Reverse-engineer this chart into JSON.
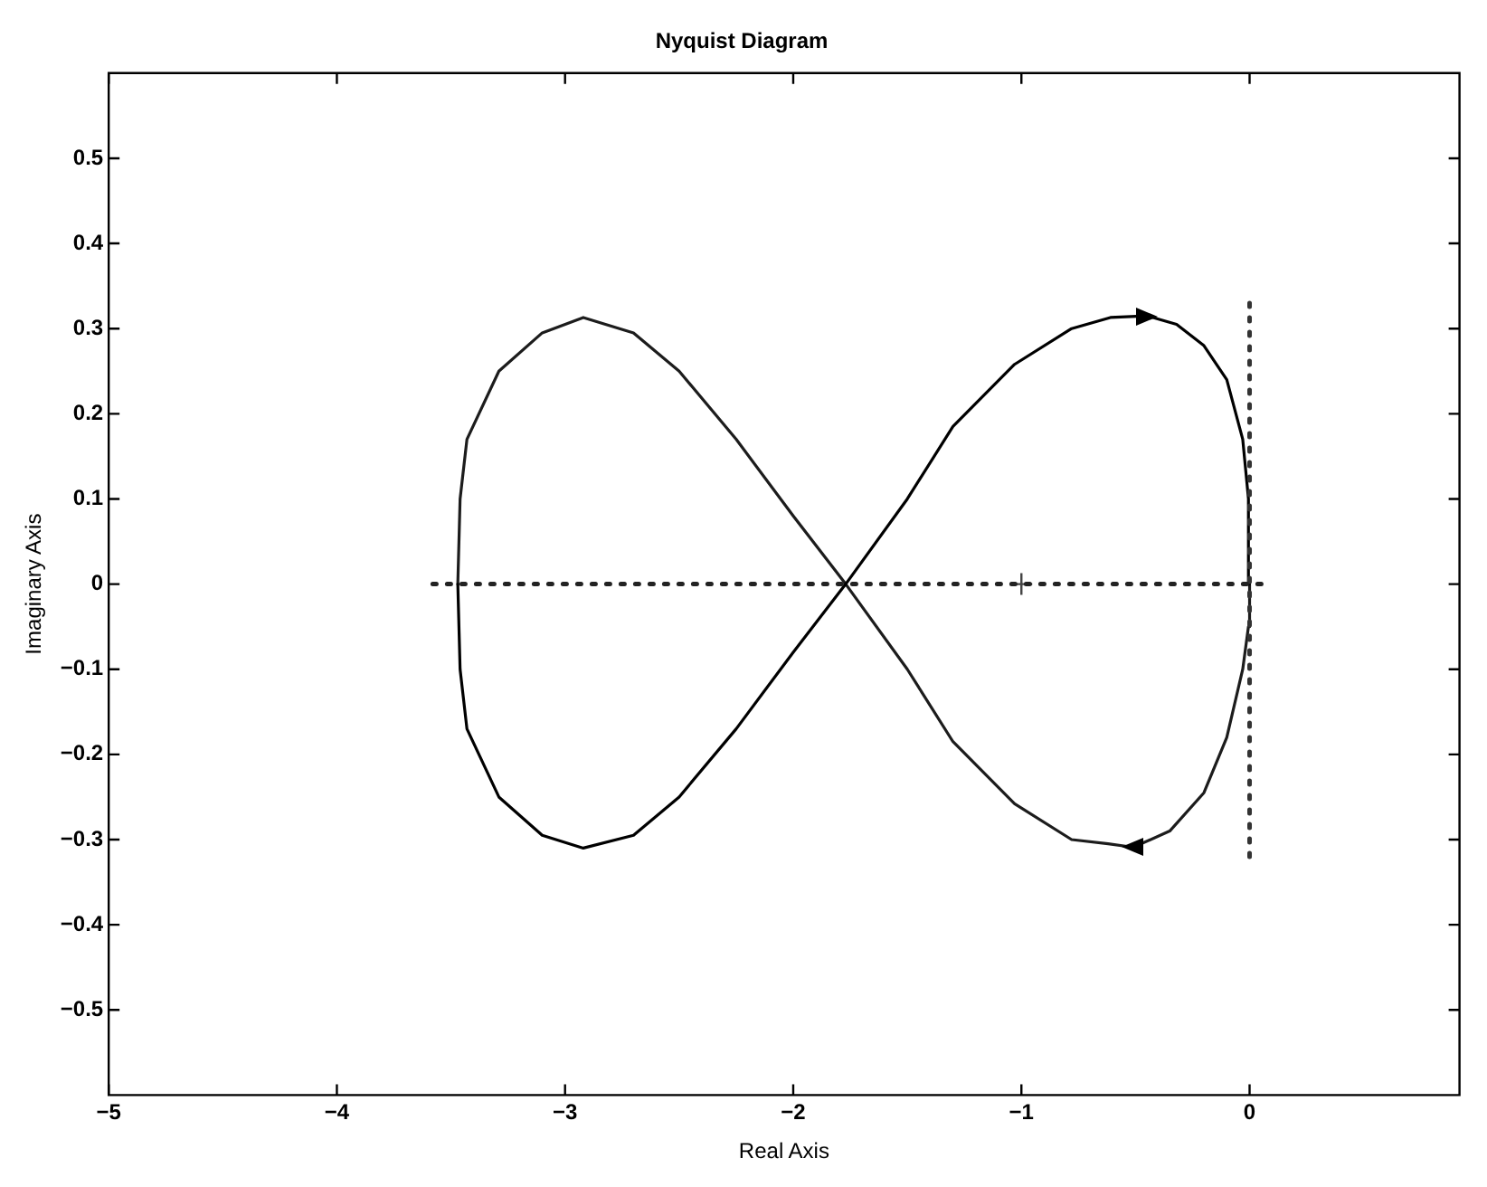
{
  "chart_data": {
    "type": "line",
    "title": "Nyquist Diagram",
    "xlabel": "Real Axis",
    "ylabel": "Imaginary Axis",
    "xlim": [
      -5,
      0.92
    ],
    "ylim": [
      -0.6,
      0.6
    ],
    "xticks": [
      -5,
      -4,
      -3,
      -2,
      -1,
      0
    ],
    "yticks": [
      -0.5,
      -0.4,
      -0.3,
      -0.2,
      -0.1,
      0,
      0.1,
      0.2,
      0.3,
      0.4,
      0.5
    ],
    "series": [
      {
        "color": "#222222",
        "line_style": "dotted",
        "x": [
          -3.58,
          0.06
        ],
        "values": [
          0,
          0
        ]
      },
      {
        "color": "#333333",
        "line_style": "dotted",
        "x": [
          0,
          0
        ],
        "values": [
          0.33,
          -0.33
        ]
      },
      {
        "type": "scatter",
        "color": "#444444",
        "marker": "cross",
        "x": [
          -1
        ],
        "values": [
          0
        ]
      },
      {
        "color": "#000000",
        "line_style": "solid",
        "x": [
          0,
          -0.005,
          -0.03,
          -0.1,
          -0.2,
          -0.32,
          -0.45,
          -0.61,
          -0.78,
          -1.03,
          -1.3,
          -1.5,
          -1.77,
          -2.0,
          -2.25,
          -2.5,
          -2.7,
          -2.92,
          -3.1,
          -3.29,
          -3.43,
          -3.46,
          -3.47
        ],
        "values": [
          0,
          0.1,
          0.17,
          0.24,
          0.28,
          0.305,
          0.315,
          0.313,
          0.3,
          0.258,
          0.185,
          0.1,
          0,
          -0.08,
          -0.17,
          -0.25,
          -0.295,
          -0.31,
          -0.295,
          -0.25,
          -0.17,
          -0.1,
          0
        ]
      },
      {
        "color": "#1c1c1c",
        "line_style": "solid",
        "x": [
          -3.47,
          -3.46,
          -3.43,
          -3.29,
          -3.1,
          -2.92,
          -2.7,
          -2.5,
          -2.25,
          -2.0,
          -1.77,
          -1.5,
          -1.3,
          -1.03,
          -0.78,
          -0.62,
          -0.51,
          -0.35,
          -0.2,
          -0.1,
          -0.03,
          -0.005,
          0
        ],
        "values": [
          0,
          0.1,
          0.17,
          0.25,
          0.295,
          0.313,
          0.295,
          0.25,
          0.17,
          0.08,
          0,
          -0.1,
          -0.185,
          -0.258,
          -0.3,
          -0.305,
          -0.309,
          -0.29,
          -0.245,
          -0.18,
          -0.1,
          -0.05,
          0
        ]
      }
    ]
  }
}
